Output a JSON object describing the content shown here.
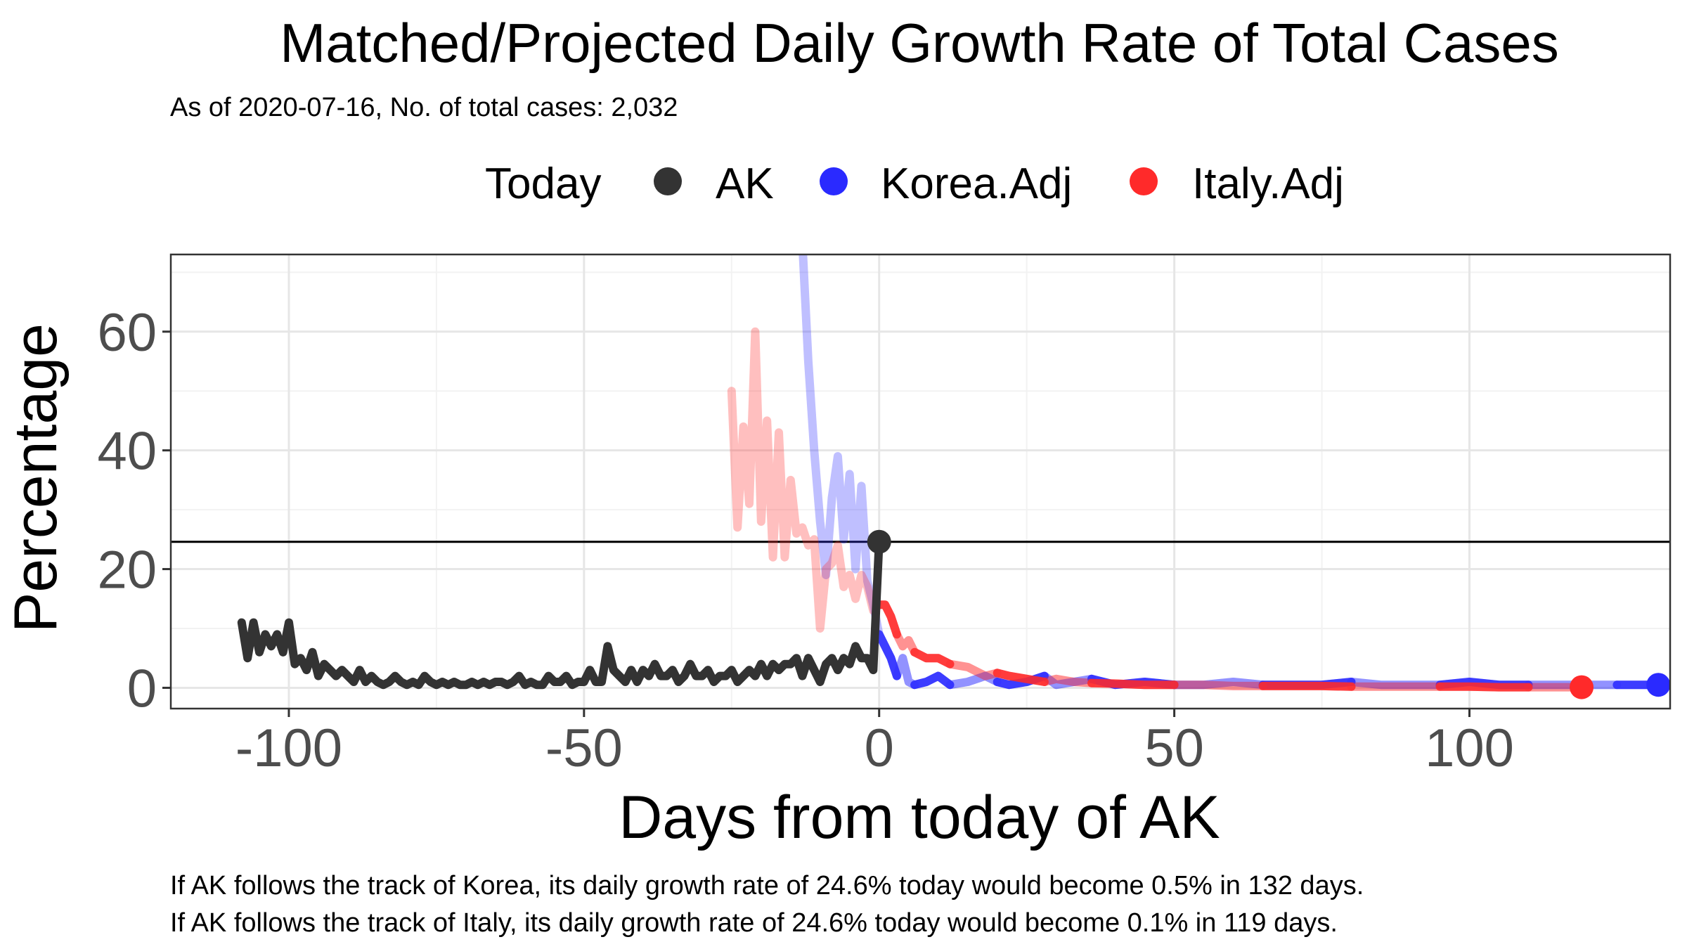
{
  "chart_data": {
    "type": "line",
    "title": "Matched/Projected Daily Growth Rate of Total Cases",
    "subtitle": "As of 2020-07-16, No. of total cases: 2,032",
    "xlabel": "Days from today of AK",
    "ylabel": "Percentage",
    "xlim": [
      -120,
      134
    ],
    "ylim": [
      -3.5,
      73
    ],
    "x_ticks": [
      -100,
      -50,
      0,
      50,
      100
    ],
    "x_tick_labels": [
      "-100",
      "-50",
      "0",
      "50",
      "100"
    ],
    "y_ticks": [
      0,
      20,
      40,
      60
    ],
    "y_tick_labels": [
      "0",
      "20",
      "40",
      "60"
    ],
    "grid": true,
    "legend": {
      "position": "top",
      "title": "Today",
      "entries": [
        {
          "label": "AK",
          "color": "#333333"
        },
        {
          "label": "Korea.Adj",
          "color": "#2a2aff"
        },
        {
          "label": "Italy.Adj",
          "color": "#ff2a2a"
        }
      ]
    },
    "hline": {
      "y": 24.6,
      "color": "#000000"
    },
    "series": [
      {
        "name": "AK",
        "color": "#333333",
        "x": [
          -108,
          -107,
          -106,
          -105,
          -104,
          -103,
          -102,
          -101,
          -100,
          -99,
          -98,
          -97,
          -96,
          -95,
          -94,
          -93,
          -92,
          -91,
          -90,
          -89,
          -88,
          -87,
          -86,
          -85,
          -84,
          -83,
          -82,
          -81,
          -80,
          -79,
          -78,
          -77,
          -76,
          -75,
          -74,
          -73,
          -72,
          -71,
          -70,
          -69,
          -68,
          -67,
          -66,
          -65,
          -64,
          -63,
          -62,
          -61,
          -60,
          -59,
          -58,
          -57,
          -56,
          -55,
          -54,
          -53,
          -52,
          -51,
          -50,
          -49,
          -48,
          -47,
          -46,
          -45,
          -44,
          -43,
          -42,
          -41,
          -40,
          -39,
          -38,
          -37,
          -36,
          -35,
          -34,
          -33,
          -32,
          -31,
          -30,
          -29,
          -28,
          -27,
          -26,
          -25,
          -24,
          -23,
          -22,
          -21,
          -20,
          -19,
          -18,
          -17,
          -16,
          -15,
          -14,
          -13,
          -12,
          -11,
          -10,
          -9,
          -8,
          -7,
          -6,
          -5,
          -4,
          -3,
          -2,
          -1,
          0
        ],
        "values": [
          11,
          5,
          11,
          6,
          9,
          7,
          9,
          6,
          11,
          4,
          5,
          3,
          6,
          2,
          4,
          3,
          2,
          3,
          2,
          1,
          3,
          1,
          2,
          1,
          0.5,
          1,
          2,
          1,
          0.5,
          1,
          0.5,
          2,
          1,
          0.5,
          1,
          0.5,
          1,
          0.5,
          0.5,
          1,
          0.5,
          1,
          0.5,
          1,
          1,
          0.5,
          1,
          2,
          0.5,
          1,
          0.5,
          0.5,
          2,
          1,
          1,
          2,
          0.5,
          1,
          1,
          3,
          1,
          1,
          7,
          3,
          2,
          1,
          3,
          1,
          3,
          2,
          4,
          2,
          2,
          3,
          1,
          2,
          4,
          2,
          2,
          3,
          1,
          2,
          2,
          3,
          1,
          2,
          3,
          2,
          4,
          2,
          4,
          3,
          4,
          4,
          5,
          2,
          5,
          3,
          1,
          4,
          5,
          3,
          5,
          4,
          7,
          5,
          5,
          3,
          24.6
        ],
        "today_point": {
          "x": 0,
          "y": 24.6
        }
      },
      {
        "name": "Korea.Adj",
        "color": "#2a2aff",
        "x": [
          -13,
          -12,
          -11,
          -10,
          -9,
          -8,
          -7,
          -6,
          -5,
          -4,
          -3,
          -2,
          -1,
          0,
          1,
          2,
          3,
          4,
          5,
          6,
          8,
          10,
          12,
          15,
          18,
          20,
          22,
          25,
          28,
          30,
          33,
          36,
          40,
          45,
          50,
          55,
          60,
          65,
          70,
          75,
          80,
          85,
          90,
          95,
          100,
          105,
          110,
          115,
          120,
          125,
          132
        ],
        "values": [
          75,
          55,
          40,
          28,
          19,
          32,
          39,
          25,
          36,
          20,
          34,
          18,
          14,
          9,
          7,
          5,
          2,
          5,
          1,
          0.5,
          1,
          2,
          0.5,
          1,
          2,
          1,
          0.5,
          1,
          2,
          0.5,
          1,
          1.5,
          0.5,
          1,
          0.5,
          0.5,
          1,
          0.5,
          0.5,
          0.5,
          1,
          0.5,
          0.5,
          0.5,
          1,
          0.5,
          0.5,
          0.5,
          0.5,
          0.5,
          0.5
        ],
        "end_point": {
          "x": 132,
          "y": 0.5
        }
      },
      {
        "name": "Italy.Adj",
        "color": "#ff2a2a",
        "x": [
          -25,
          -24,
          -23,
          -22,
          -21,
          -20,
          -19,
          -18,
          -17,
          -16,
          -15,
          -14,
          -13,
          -12,
          -11,
          -10,
          -9,
          -8,
          -7,
          -6,
          -5,
          -4,
          -3,
          -2,
          -1,
          0,
          1,
          2,
          3,
          4,
          5,
          6,
          8,
          10,
          12,
          15,
          18,
          20,
          22,
          25,
          28,
          30,
          33,
          36,
          40,
          45,
          50,
          55,
          60,
          65,
          70,
          75,
          80,
          85,
          90,
          95,
          100,
          105,
          110,
          115,
          119
        ],
        "values": [
          50,
          27,
          44,
          31,
          60,
          28,
          45,
          22,
          43,
          22,
          35,
          26,
          27,
          24,
          25,
          10,
          20,
          21,
          24,
          17,
          19,
          15,
          19,
          17,
          13,
          14,
          14,
          12,
          9,
          7,
          8,
          6,
          5,
          5,
          4,
          3.5,
          2,
          2.5,
          2,
          1.5,
          1,
          1.5,
          1,
          0.8,
          0.7,
          0.5,
          0.5,
          0.5,
          0.3,
          0.3,
          0.3,
          0.3,
          0.2,
          0.2,
          0.2,
          0.2,
          0.2,
          0.1,
          0.1,
          0.1,
          0.1
        ],
        "end_point": {
          "x": 119,
          "y": 0.1
        }
      }
    ]
  },
  "footer": {
    "line1": "If AK follows the track of Korea, its daily growth rate of 24.6% today would become 0.5% in 132 days.",
    "line2": "If AK follows the track of Italy, its daily growth rate of 24.6% today would become 0.1% in 119 days."
  }
}
